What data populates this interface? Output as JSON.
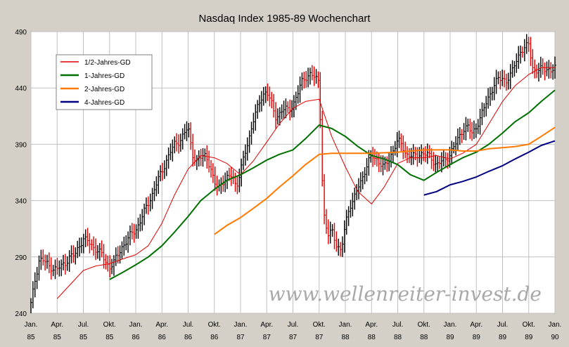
{
  "chart_data": {
    "type": "line",
    "title": "Nasdaq Index 1985-89 Wochenchart",
    "watermark": "www.wellenreiter-invest.de",
    "ylim": [
      240,
      490
    ],
    "yticks": [
      240,
      290,
      340,
      390,
      440,
      490
    ],
    "xlim": [
      1985.0,
      1990.0
    ],
    "xticks": [
      {
        "x": 1985.0,
        "line1": "Jan.",
        "line2": "85"
      },
      {
        "x": 1985.25,
        "line1": "Apr.",
        "line2": "85"
      },
      {
        "x": 1985.5,
        "line1": "Jul.",
        "line2": "85"
      },
      {
        "x": 1985.75,
        "line1": "Okt.",
        "line2": "85"
      },
      {
        "x": 1986.0,
        "line1": "Jan.",
        "line2": "86"
      },
      {
        "x": 1986.25,
        "line1": "Apr.",
        "line2": "86"
      },
      {
        "x": 1986.5,
        "line1": "Jul.",
        "line2": "86"
      },
      {
        "x": 1986.75,
        "line1": "Okt.",
        "line2": "86"
      },
      {
        "x": 1987.0,
        "line1": "Jan.",
        "line2": "87"
      },
      {
        "x": 1987.25,
        "line1": "Apr.",
        "line2": "87"
      },
      {
        "x": 1987.5,
        "line1": "Jul.",
        "line2": "87"
      },
      {
        "x": 1987.75,
        "line1": "Okt.",
        "line2": "87"
      },
      {
        "x": 1988.0,
        "line1": "Jan.",
        "line2": "88"
      },
      {
        "x": 1988.25,
        "line1": "Apr.",
        "line2": "88"
      },
      {
        "x": 1988.5,
        "line1": "Jul.",
        "line2": "88"
      },
      {
        "x": 1988.75,
        "line1": "Okt.",
        "line2": "88"
      },
      {
        "x": 1989.0,
        "line1": "Jan.",
        "line2": "89"
      },
      {
        "x": 1989.25,
        "line1": "Apr.",
        "line2": "89"
      },
      {
        "x": 1989.5,
        "line1": "Jul.",
        "line2": "89"
      },
      {
        "x": 1989.75,
        "line1": "Okt.",
        "line2": "89"
      },
      {
        "x": 1990.0,
        "line1": "Jan.",
        "line2": "90"
      }
    ],
    "grid": true,
    "legend_position": "top-left",
    "price": [
      [
        1985.0,
        248
      ],
      [
        1985.04,
        270
      ],
      [
        1985.08,
        288
      ],
      [
        1985.12,
        287
      ],
      [
        1985.17,
        282
      ],
      [
        1985.21,
        280
      ],
      [
        1985.25,
        279
      ],
      [
        1985.29,
        282
      ],
      [
        1985.33,
        285
      ],
      [
        1985.37,
        290
      ],
      [
        1985.42,
        292
      ],
      [
        1985.46,
        300
      ],
      [
        1985.5,
        306
      ],
      [
        1985.54,
        304
      ],
      [
        1985.58,
        300
      ],
      [
        1985.62,
        297
      ],
      [
        1985.67,
        293
      ],
      [
        1985.71,
        286
      ],
      [
        1985.75,
        281
      ],
      [
        1985.79,
        285
      ],
      [
        1985.83,
        292
      ],
      [
        1985.87,
        299
      ],
      [
        1985.92,
        305
      ],
      [
        1985.96,
        311
      ],
      [
        1986.0,
        314
      ],
      [
        1986.04,
        321
      ],
      [
        1986.08,
        330
      ],
      [
        1986.12,
        338
      ],
      [
        1986.17,
        348
      ],
      [
        1986.21,
        358
      ],
      [
        1986.25,
        366
      ],
      [
        1986.29,
        375
      ],
      [
        1986.33,
        383
      ],
      [
        1986.37,
        390
      ],
      [
        1986.42,
        393
      ],
      [
        1986.46,
        399
      ],
      [
        1986.5,
        405
      ],
      [
        1986.54,
        382
      ],
      [
        1986.58,
        374
      ],
      [
        1986.62,
        378
      ],
      [
        1986.67,
        381
      ],
      [
        1986.71,
        370
      ],
      [
        1986.75,
        355
      ],
      [
        1986.79,
        352
      ],
      [
        1986.83,
        357
      ],
      [
        1986.87,
        359
      ],
      [
        1986.92,
        363
      ],
      [
        1986.96,
        352
      ],
      [
        1987.0,
        366
      ],
      [
        1987.04,
        381
      ],
      [
        1987.08,
        395
      ],
      [
        1987.12,
        411
      ],
      [
        1987.17,
        424
      ],
      [
        1987.21,
        434
      ],
      [
        1987.25,
        437
      ],
      [
        1987.29,
        428
      ],
      [
        1987.33,
        414
      ],
      [
        1987.37,
        417
      ],
      [
        1987.42,
        422
      ],
      [
        1987.46,
        420
      ],
      [
        1987.5,
        425
      ],
      [
        1987.54,
        433
      ],
      [
        1987.58,
        445
      ],
      [
        1987.62,
        450
      ],
      [
        1987.67,
        452
      ],
      [
        1987.71,
        449
      ],
      [
        1987.75,
        446
      ],
      [
        1987.79,
        330
      ],
      [
        1987.83,
        308
      ],
      [
        1987.87,
        315
      ],
      [
        1987.92,
        300
      ],
      [
        1987.96,
        293
      ],
      [
        1988.0,
        320
      ],
      [
        1988.04,
        335
      ],
      [
        1988.08,
        340
      ],
      [
        1988.12,
        352
      ],
      [
        1988.17,
        362
      ],
      [
        1988.21,
        372
      ],
      [
        1988.25,
        380
      ],
      [
        1988.29,
        378
      ],
      [
        1988.33,
        373
      ],
      [
        1988.37,
        369
      ],
      [
        1988.42,
        378
      ],
      [
        1988.46,
        385
      ],
      [
        1988.5,
        393
      ],
      [
        1988.54,
        390
      ],
      [
        1988.58,
        381
      ],
      [
        1988.62,
        379
      ],
      [
        1988.67,
        380
      ],
      [
        1988.71,
        382
      ],
      [
        1988.75,
        381
      ],
      [
        1988.79,
        381
      ],
      [
        1988.83,
        377
      ],
      [
        1988.87,
        371
      ],
      [
        1988.92,
        375
      ],
      [
        1988.96,
        377
      ],
      [
        1989.0,
        381
      ],
      [
        1989.04,
        388
      ],
      [
        1989.08,
        396
      ],
      [
        1989.12,
        403
      ],
      [
        1989.17,
        405
      ],
      [
        1989.21,
        400
      ],
      [
        1989.25,
        406
      ],
      [
        1989.29,
        413
      ],
      [
        1989.33,
        424
      ],
      [
        1989.37,
        433
      ],
      [
        1989.42,
        442
      ],
      [
        1989.46,
        448
      ],
      [
        1989.5,
        449
      ],
      [
        1989.54,
        446
      ],
      [
        1989.58,
        451
      ],
      [
        1989.62,
        463
      ],
      [
        1989.67,
        472
      ],
      [
        1989.71,
        474
      ],
      [
        1989.75,
        480
      ],
      [
        1989.79,
        457
      ],
      [
        1989.83,
        454
      ],
      [
        1989.87,
        457
      ],
      [
        1989.92,
        458
      ],
      [
        1989.96,
        454
      ],
      [
        1990.0,
        458
      ]
    ],
    "series": [
      {
        "name": "1/2-Jahres-GD",
        "color": "#e00000",
        "width": 1,
        "points": [
          [
            1985.25,
            253
          ],
          [
            1985.37,
            265
          ],
          [
            1985.5,
            278
          ],
          [
            1985.62,
            282
          ],
          [
            1985.75,
            284
          ],
          [
            1985.87,
            288
          ],
          [
            1986.0,
            292
          ],
          [
            1986.12,
            300
          ],
          [
            1986.25,
            320
          ],
          [
            1986.37,
            345
          ],
          [
            1986.5,
            368
          ],
          [
            1986.62,
            380
          ],
          [
            1986.75,
            378
          ],
          [
            1986.87,
            373
          ],
          [
            1987.0,
            363
          ],
          [
            1987.12,
            375
          ],
          [
            1987.25,
            392
          ],
          [
            1987.37,
            408
          ],
          [
            1987.5,
            422
          ],
          [
            1987.62,
            428
          ],
          [
            1987.75,
            430
          ],
          [
            1987.87,
            397
          ],
          [
            1988.0,
            370
          ],
          [
            1988.12,
            348
          ],
          [
            1988.25,
            337
          ],
          [
            1988.37,
            352
          ],
          [
            1988.5,
            373
          ],
          [
            1988.62,
            378
          ],
          [
            1988.75,
            378
          ],
          [
            1988.87,
            380
          ],
          [
            1989.0,
            377
          ],
          [
            1989.12,
            382
          ],
          [
            1989.25,
            390
          ],
          [
            1989.37,
            408
          ],
          [
            1989.5,
            428
          ],
          [
            1989.62,
            442
          ],
          [
            1989.75,
            452
          ],
          [
            1989.87,
            458
          ],
          [
            1990.0,
            458
          ]
        ]
      },
      {
        "name": "1-Jahres-GD",
        "color": "#007000",
        "width": 2,
        "points": [
          [
            1985.75,
            270
          ],
          [
            1985.87,
            276
          ],
          [
            1986.0,
            283
          ],
          [
            1986.12,
            290
          ],
          [
            1986.25,
            300
          ],
          [
            1986.37,
            312
          ],
          [
            1986.5,
            326
          ],
          [
            1986.62,
            340
          ],
          [
            1986.75,
            350
          ],
          [
            1986.87,
            358
          ],
          [
            1987.0,
            363
          ],
          [
            1987.12,
            369
          ],
          [
            1987.25,
            376
          ],
          [
            1987.37,
            381
          ],
          [
            1987.5,
            385
          ],
          [
            1987.62,
            395
          ],
          [
            1987.75,
            407
          ],
          [
            1987.87,
            404
          ],
          [
            1988.0,
            397
          ],
          [
            1988.12,
            388
          ],
          [
            1988.25,
            380
          ],
          [
            1988.37,
            377
          ],
          [
            1988.5,
            372
          ],
          [
            1988.62,
            363
          ],
          [
            1988.75,
            358
          ],
          [
            1988.87,
            365
          ],
          [
            1989.0,
            372
          ],
          [
            1989.12,
            378
          ],
          [
            1989.25,
            383
          ],
          [
            1989.37,
            390
          ],
          [
            1989.5,
            400
          ],
          [
            1989.62,
            410
          ],
          [
            1989.75,
            418
          ],
          [
            1989.87,
            428
          ],
          [
            1990.0,
            438
          ]
        ]
      },
      {
        "name": "2-Jahres-GD",
        "color": "#ff7a00",
        "width": 2,
        "points": [
          [
            1986.75,
            310
          ],
          [
            1986.87,
            318
          ],
          [
            1987.0,
            325
          ],
          [
            1987.12,
            333
          ],
          [
            1987.25,
            342
          ],
          [
            1987.37,
            352
          ],
          [
            1987.5,
            362
          ],
          [
            1987.62,
            372
          ],
          [
            1987.75,
            381
          ],
          [
            1987.87,
            382
          ],
          [
            1988.0,
            382
          ],
          [
            1988.25,
            382
          ],
          [
            1988.5,
            383
          ],
          [
            1988.75,
            385
          ],
          [
            1989.0,
            385
          ],
          [
            1989.12,
            384
          ],
          [
            1989.25,
            384
          ],
          [
            1989.37,
            386
          ],
          [
            1989.5,
            387
          ],
          [
            1989.62,
            388
          ],
          [
            1989.75,
            390
          ],
          [
            1989.87,
            397
          ],
          [
            1990.0,
            405
          ]
        ]
      },
      {
        "name": "4-Jahres-GD",
        "color": "#000080",
        "width": 2,
        "points": [
          [
            1988.75,
            345
          ],
          [
            1988.87,
            348
          ],
          [
            1989.0,
            354
          ],
          [
            1989.12,
            357
          ],
          [
            1989.25,
            361
          ],
          [
            1989.37,
            366
          ],
          [
            1989.5,
            371
          ],
          [
            1989.62,
            377
          ],
          [
            1989.75,
            383
          ],
          [
            1989.87,
            389
          ],
          [
            1990.0,
            393
          ]
        ]
      }
    ]
  }
}
